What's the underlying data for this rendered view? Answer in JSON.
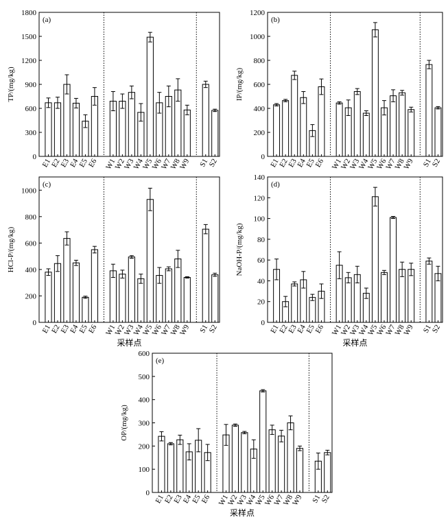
{
  "chart_data": [
    {
      "type": "bar",
      "title": "(a)",
      "ylabel": "TP/(mg/kg)",
      "categories": [
        "E1",
        "E2",
        "E3",
        "E4",
        "E5",
        "E6",
        "W1",
        "W2",
        "W3",
        "W4",
        "W5",
        "W6",
        "W7",
        "W8",
        "W9",
        "S1",
        "S2"
      ],
      "values": [
        670,
        670,
        900,
        665,
        440,
        750,
        690,
        690,
        800,
        550,
        1490,
        670,
        750,
        830,
        580,
        900,
        575
      ],
      "errors": [
        60,
        70,
        120,
        60,
        80,
        110,
        120,
        90,
        80,
        110,
        60,
        130,
        130,
        140,
        60,
        40,
        15
      ],
      "ylim": [
        0,
        1800
      ],
      "yticks": [
        0,
        300,
        600,
        900,
        1200,
        1500,
        1800
      ]
    },
    {
      "type": "bar",
      "title": "(b)",
      "ylabel": "IP/(mg/kg)",
      "categories": [
        "E1",
        "E2",
        "E3",
        "E4",
        "E5",
        "E6",
        "W1",
        "W2",
        "W3",
        "W4",
        "W5",
        "W6",
        "W7",
        "W8",
        "W9",
        "S1",
        "S2"
      ],
      "values": [
        430,
        465,
        675,
        490,
        215,
        580,
        445,
        405,
        540,
        360,
        1055,
        405,
        505,
        530,
        390,
        765,
        405
      ],
      "errors": [
        10,
        10,
        35,
        50,
        50,
        65,
        10,
        65,
        25,
        20,
        60,
        60,
        50,
        20,
        20,
        35,
        10
      ],
      "ylim": [
        0,
        1200
      ],
      "yticks": [
        0,
        200,
        400,
        600,
        800,
        1000,
        1200
      ]
    },
    {
      "type": "bar",
      "title": "(c)",
      "ylabel": "HCl-P/(mg/kg)",
      "xlabel": "采样点",
      "categories": [
        "E1",
        "E2",
        "E3",
        "E4",
        "E5",
        "E6",
        "W1",
        "W2",
        "W3",
        "W4",
        "W5",
        "W6",
        "W7",
        "W8",
        "W9",
        "S1",
        "S2"
      ],
      "values": [
        380,
        445,
        635,
        450,
        190,
        550,
        390,
        365,
        495,
        330,
        930,
        355,
        405,
        480,
        340,
        705,
        360
      ],
      "errors": [
        25,
        60,
        50,
        20,
        8,
        25,
        50,
        30,
        10,
        35,
        85,
        60,
        15,
        65,
        5,
        35,
        12
      ],
      "ylim": [
        0,
        1100
      ],
      "yticks": [
        0,
        200,
        400,
        600,
        800,
        1000
      ]
    },
    {
      "type": "bar",
      "title": "(d)",
      "ylabel": "NaOH-P/(mg/kg)",
      "xlabel": "采样点",
      "categories": [
        "E1",
        "E2",
        "E3",
        "E4",
        "E5",
        "E6",
        "W1",
        "W2",
        "W3",
        "W4",
        "W5",
        "W6",
        "W7",
        "W8",
        "W9",
        "S1",
        "S2"
      ],
      "values": [
        51,
        20,
        37,
        41,
        24,
        30,
        55,
        43,
        46,
        28,
        121,
        48,
        101,
        51,
        51,
        59,
        47
      ],
      "errors": [
        10,
        5,
        2,
        8,
        3,
        7,
        13,
        5,
        8,
        5,
        9,
        2,
        1,
        7,
        6,
        3,
        7
      ],
      "ylim": [
        0,
        140
      ],
      "yticks": [
        0,
        20,
        40,
        60,
        80,
        100,
        120,
        140
      ]
    },
    {
      "type": "bar",
      "title": "(e)",
      "ylabel": "OP/(mg/kg)",
      "xlabel": "采样点",
      "categories": [
        "E1",
        "E2",
        "E3",
        "E4",
        "E5",
        "E6",
        "W1",
        "W2",
        "W3",
        "W4",
        "W5",
        "W6",
        "W7",
        "W8",
        "W9",
        "S1",
        "S2"
      ],
      "values": [
        242,
        210,
        227,
        175,
        225,
        172,
        248,
        290,
        258,
        187,
        438,
        270,
        243,
        300,
        190,
        135,
        172
      ],
      "errors": [
        20,
        5,
        20,
        35,
        50,
        35,
        45,
        5,
        5,
        40,
        5,
        20,
        25,
        30,
        10,
        35,
        10
      ],
      "ylim": [
        0,
        600
      ],
      "yticks": [
        0,
        100,
        200,
        300,
        400,
        500,
        600
      ]
    }
  ]
}
